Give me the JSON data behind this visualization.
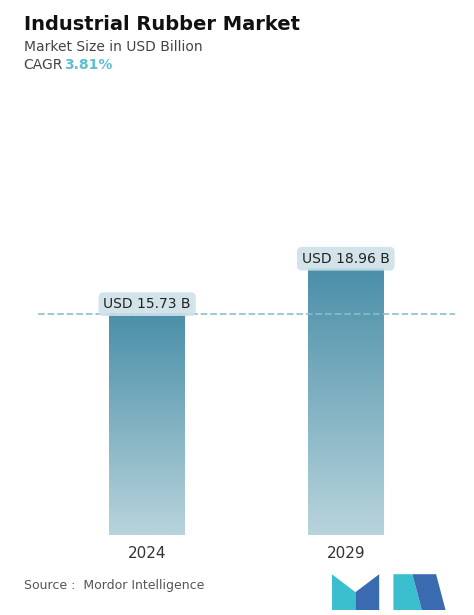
{
  "title": "Industrial Rubber Market",
  "subtitle": "Market Size in USD Billion",
  "cagr_label": "CAGR",
  "cagr_value": "3.81%",
  "cagr_color": "#5bbfcf",
  "categories": [
    "2024",
    "2029"
  ],
  "values": [
    15.73,
    18.96
  ],
  "bar_labels": [
    "USD 15.73 B",
    "USD 18.96 B"
  ],
  "bar_color_top": "#4a8fa8",
  "bar_color_bottom": "#b8d4dc",
  "background_color": "#ffffff",
  "dashed_line_color": "#8bbccc",
  "dashed_line_y": 15.73,
  "source_text": "Source :  Mordor Intelligence",
  "ylim": [
    0,
    21
  ],
  "title_fontsize": 14,
  "subtitle_fontsize": 10,
  "cagr_fontsize": 10,
  "label_fontsize": 10,
  "tick_fontsize": 11,
  "source_fontsize": 9,
  "bar_width": 0.38
}
